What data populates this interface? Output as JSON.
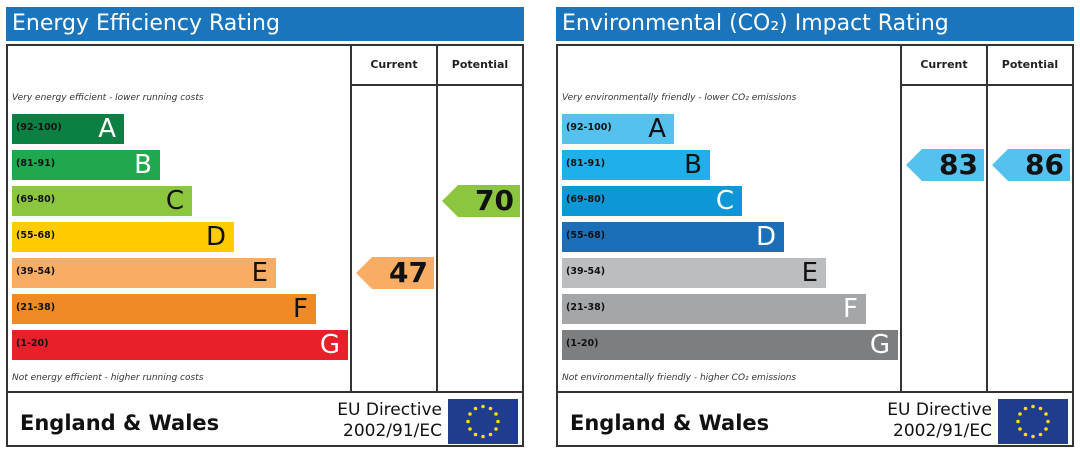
{
  "chart_data": [
    {
      "type": "bar",
      "title": "Energy Efficiency Rating",
      "columns": [
        "Current",
        "Potential"
      ],
      "top_note": "Very energy efficient - lower running costs",
      "bottom_note": "Not energy efficient - higher running costs",
      "bands": [
        {
          "range": "(92-100)",
          "letter": "A",
          "color": "#0c8043",
          "dark_letter": false
        },
        {
          "range": "(81-91)",
          "letter": "B",
          "color": "#1fa84e",
          "dark_letter": false
        },
        {
          "range": "(69-80)",
          "letter": "C",
          "color": "#8cc63f",
          "dark_letter": true
        },
        {
          "range": "(55-68)",
          "letter": "D",
          "color": "#ffcc00",
          "dark_letter": true
        },
        {
          "range": "(39-54)",
          "letter": "E",
          "color": "#f9ac64",
          "dark_letter": true
        },
        {
          "range": "(21-38)",
          "letter": "F",
          "color": "#f08a24",
          "dark_letter": true
        },
        {
          "range": "(1-20)",
          "letter": "G",
          "color": "#e8202a",
          "dark_letter": false
        }
      ],
      "current": {
        "value": 47,
        "band": "E",
        "color": "#f9ac64"
      },
      "potential": {
        "value": 70,
        "band": "C",
        "color": "#8cc63f"
      },
      "footer": {
        "region": "England & Wales",
        "directive_line1": "EU Directive",
        "directive_line2": "2002/91/EC"
      }
    },
    {
      "type": "bar",
      "title": "Environmental (CO₂) Impact Rating",
      "columns": [
        "Current",
        "Potential"
      ],
      "top_note": "Very environmentally friendly - lower CO₂ emissions",
      "bottom_note": "Not environmentally friendly - higher CO₂ emissions",
      "bands": [
        {
          "range": "(92-100)",
          "letter": "A",
          "color": "#55c1ef",
          "dark_letter": true
        },
        {
          "range": "(81-91)",
          "letter": "B",
          "color": "#1fb0ea",
          "dark_letter": true
        },
        {
          "range": "(69-80)",
          "letter": "C",
          "color": "#0d97d6",
          "dark_letter": false
        },
        {
          "range": "(55-68)",
          "letter": "D",
          "color": "#1a6fb8",
          "dark_letter": false
        },
        {
          "range": "(39-54)",
          "letter": "E",
          "color": "#bbbdc0",
          "dark_letter": true
        },
        {
          "range": "(21-38)",
          "letter": "F",
          "color": "#a4a6a8",
          "dark_letter": false
        },
        {
          "range": "(1-20)",
          "letter": "G",
          "color": "#7c7e80",
          "dark_letter": false
        }
      ],
      "current": {
        "value": 83,
        "band": "B",
        "color": "#55c1ef"
      },
      "potential": {
        "value": 86,
        "band": "B",
        "color": "#55c1ef"
      },
      "footer": {
        "region": "England & Wales",
        "directive_line1": "EU Directive",
        "directive_line2": "2002/91/EC"
      }
    }
  ]
}
